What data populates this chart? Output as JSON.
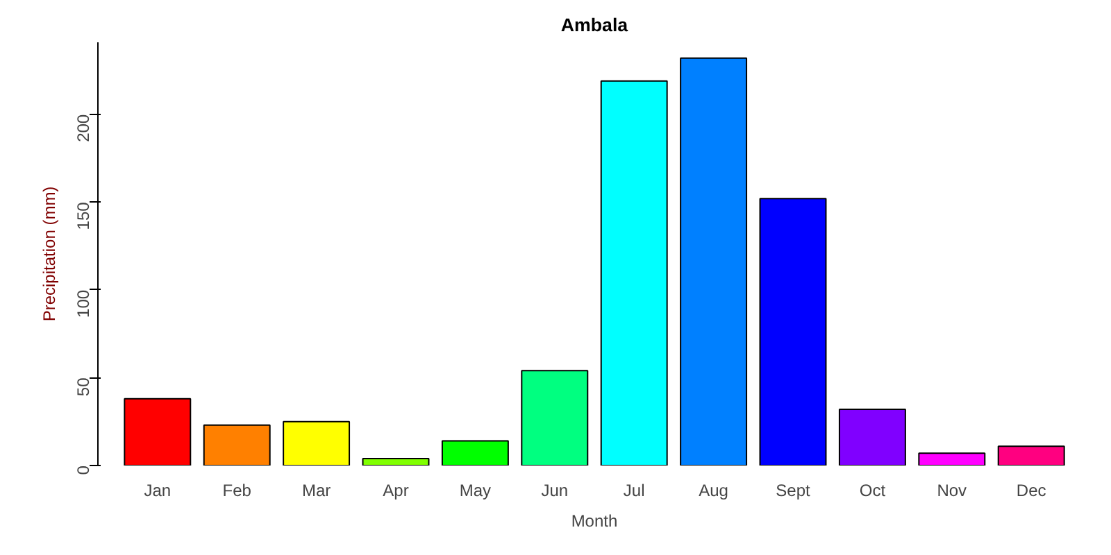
{
  "chart_data": {
    "type": "bar",
    "title": "Ambala",
    "xlabel": "Month",
    "ylabel": "Precipitation (mm)",
    "categories": [
      "Jan",
      "Feb",
      "Mar",
      "Apr",
      "May",
      "Jun",
      "Jul",
      "Aug",
      "Sept",
      "Oct",
      "Nov",
      "Dec"
    ],
    "values": [
      38,
      23,
      25,
      4,
      14,
      54,
      219,
      232,
      152,
      32,
      7,
      11
    ],
    "colors": [
      "#ff0000",
      "#ff8000",
      "#ffff00",
      "#80ff00",
      "#00ff00",
      "#00ff80",
      "#00ffff",
      "#0080ff",
      "#0000ff",
      "#8000ff",
      "#ff00ff",
      "#ff0080"
    ],
    "ylim": [
      0,
      241
    ],
    "yticks": [
      0,
      50,
      100,
      150,
      200
    ],
    "grid": false
  }
}
